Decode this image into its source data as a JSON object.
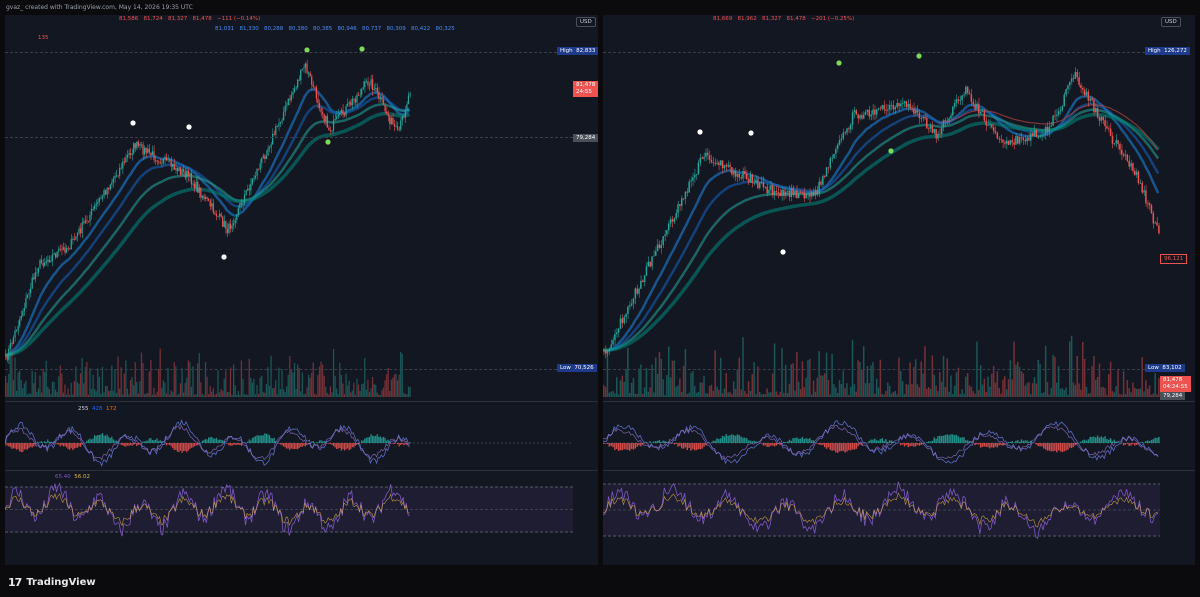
{
  "header": {
    "credit": "gvaz_ created with TradingView.com, May 14, 2026 19:35 UTC"
  },
  "footer": {
    "brand": "TradingView",
    "logo_glyph": "17"
  },
  "colors": {
    "up": "#26a69a",
    "down": "#ef5350",
    "blue": "#2962ff",
    "bg": "#131722",
    "rsi": "#7e57c2",
    "rsi_ma": "#e4b54a"
  },
  "left": {
    "ohlc": [
      "81,586",
      "81,724",
      "81,327",
      "81,478",
      "−111 (−0.14%)"
    ],
    "ma_values": [
      "81,031",
      "81,330",
      "80,288",
      "80,380",
      "80,385",
      "80,946",
      "80,737",
      "80,309",
      "80,422",
      "80,325"
    ],
    "count_label": "135",
    "currency": "USD",
    "high_label": "High",
    "high_value": "82,833",
    "price_now": "81,478",
    "countdown": "24:55",
    "level_value": "79,284",
    "low_label": "Low",
    "low_value": "70,526",
    "macd_values": [
      "255",
      "428",
      "172"
    ],
    "rsi_values": [
      "65.40",
      "56.02"
    ]
  },
  "right": {
    "ohlc": [
      "81,669",
      "81,962",
      "81,327",
      "81,478",
      "−201 (−0.25%)"
    ],
    "currency": "USD",
    "high_label": "High",
    "high_value": "126,272",
    "level_value": "96,121",
    "low_label": "Low",
    "low_value": "83,102",
    "price_now": "81,478",
    "countdown": "04:24:55",
    "level2_value": "79,284"
  }
}
